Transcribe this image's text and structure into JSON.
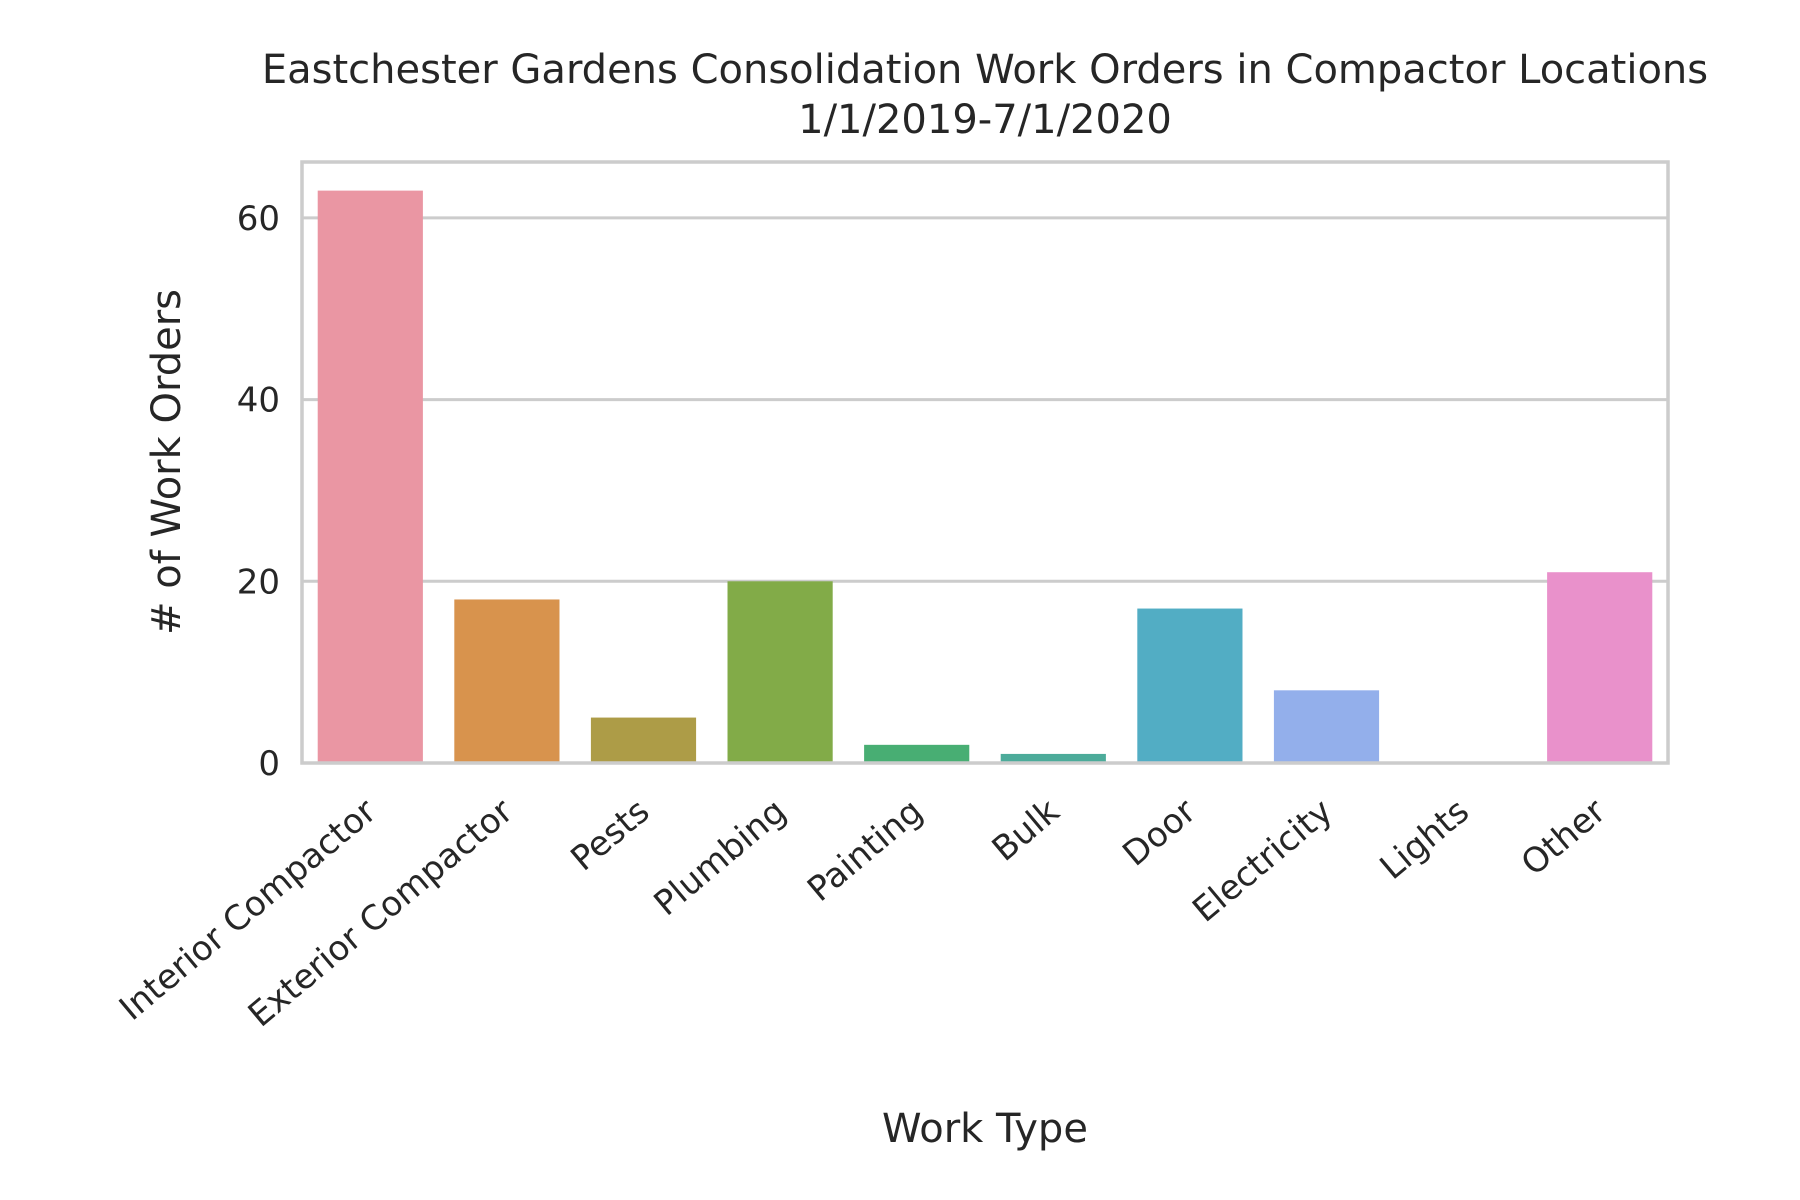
{
  "chart_data": {
    "type": "bar",
    "title_line1": "Eastchester Gardens Consolidation Work Orders in Compactor Locations",
    "title_line2": "1/1/2019-7/1/2020",
    "xlabel": "Work Type",
    "ylabel": "# of Work Orders",
    "categories": [
      "Interior Compactor",
      "Exterior Compactor",
      "Pests",
      "Plumbing",
      "Painting",
      "Bulk",
      "Door",
      "Electricity",
      "Lights",
      "Other"
    ],
    "values": [
      63,
      18,
      5,
      20,
      2,
      1,
      17,
      8,
      0,
      21
    ],
    "colors": [
      "#ea96a3",
      "#d8934d",
      "#ad9c47",
      "#82ab48",
      "#48ae73",
      "#4cab9a",
      "#52adc4",
      "#93afeb",
      "#c6a2ee",
      "#e991cb"
    ],
    "ylim": [
      0,
      66.15
    ],
    "yticks": [
      0,
      20,
      40,
      60
    ],
    "grid": true
  }
}
